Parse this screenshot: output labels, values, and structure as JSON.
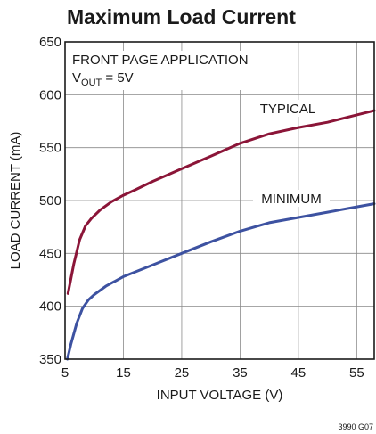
{
  "chart_data": {
    "type": "line",
    "title": "Maximum Load Current",
    "xlabel": "INPUT VOLTAGE (V)",
    "ylabel": "LOAD CURRENT (mA)",
    "xlim": [
      5,
      58
    ],
    "ylim": [
      350,
      650
    ],
    "xticks": [
      5,
      15,
      25,
      35,
      45,
      55
    ],
    "yticks": [
      350,
      400,
      450,
      500,
      550,
      600,
      650
    ],
    "grid": true,
    "annotation": {
      "line1": "FRONT PAGE APPLICATION",
      "line2_prefix": "V",
      "line2_sub": "OUT",
      "line2_suffix": " = 5V"
    },
    "series": [
      {
        "name": "TYPICAL",
        "color": "#8b1538",
        "x": [
          5.5,
          6.5,
          7.5,
          8.5,
          9.5,
          11,
          13,
          15,
          17,
          20,
          25,
          30,
          35,
          40,
          45,
          50,
          55,
          58
        ],
        "y": [
          412,
          440,
          463,
          476,
          483,
          491,
          499,
          505,
          510,
          518,
          530,
          542,
          554,
          563,
          569,
          574,
          581,
          585
        ]
      },
      {
        "name": "MINIMUM",
        "color": "#3d52a1",
        "x": [
          5.4,
          6,
          7,
          8,
          9,
          10,
          12,
          15,
          20,
          25,
          30,
          35,
          40,
          45,
          50,
          55,
          58
        ],
        "y": [
          350,
          364,
          384,
          398,
          406,
          411,
          419,
          428,
          439,
          450,
          461,
          471,
          479,
          484,
          489,
          494,
          497
        ]
      }
    ],
    "figure_code": "3990 G07"
  }
}
